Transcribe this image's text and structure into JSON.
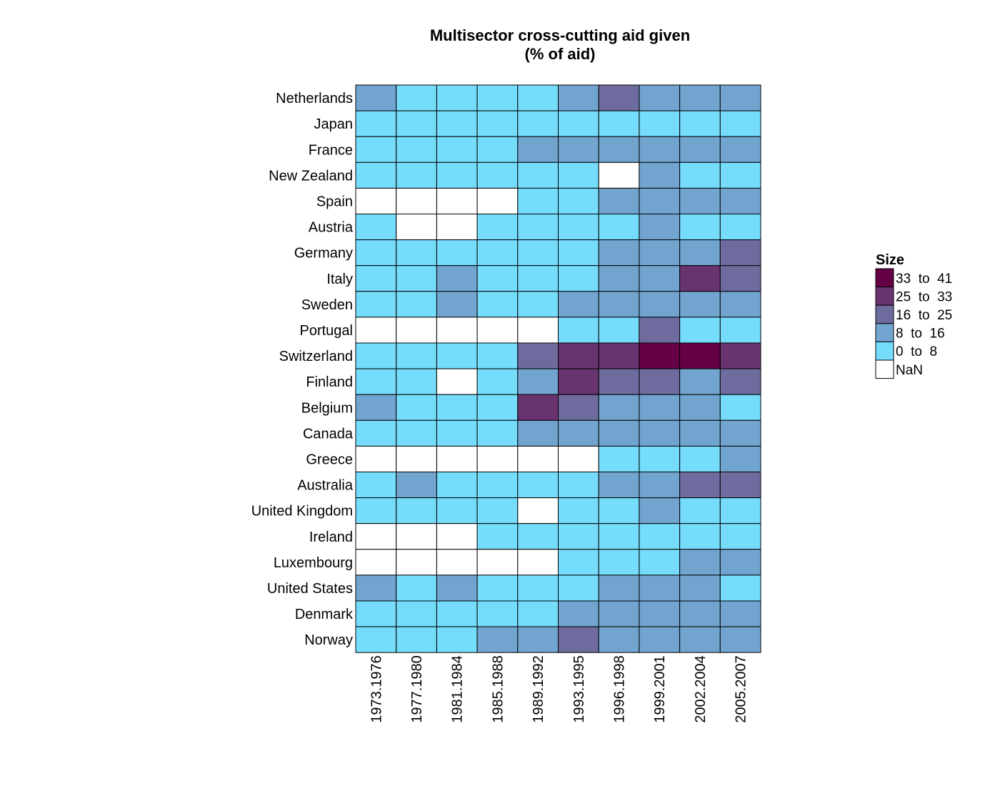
{
  "chart_data": {
    "type": "heatmap",
    "title": "Multisector cross-cutting aid given",
    "subtitle": "(% of aid)",
    "rows": [
      "Netherlands",
      "Japan",
      "France",
      "New Zealand",
      "Spain",
      "Austria",
      "Germany",
      "Italy",
      "Sweden",
      "Portugal",
      "Switzerland",
      "Finland",
      "Belgium",
      "Canada",
      "Greece",
      "Australia",
      "United Kingdom",
      "Ireland",
      "Luxembourg",
      "United States",
      "Denmark",
      "Norway"
    ],
    "columns": [
      "1973.1976",
      "1977.1980",
      "1981.1984",
      "1985.1988",
      "1989.1992",
      "1993.1995",
      "1996.1998",
      "1999.2001",
      "2002.2004",
      "2005.2007"
    ],
    "cell_bins": [
      [
        1,
        0,
        0,
        0,
        0,
        1,
        2,
        1,
        1,
        1
      ],
      [
        0,
        0,
        0,
        0,
        0,
        0,
        0,
        0,
        0,
        0
      ],
      [
        0,
        0,
        0,
        0,
        1,
        1,
        1,
        1,
        1,
        1
      ],
      [
        0,
        0,
        0,
        0,
        0,
        0,
        -1,
        1,
        0,
        0
      ],
      [
        -1,
        -1,
        -1,
        -1,
        0,
        0,
        1,
        1,
        1,
        1
      ],
      [
        0,
        -1,
        -1,
        0,
        0,
        0,
        0,
        1,
        0,
        0
      ],
      [
        0,
        0,
        0,
        0,
        0,
        0,
        1,
        1,
        1,
        2
      ],
      [
        0,
        0,
        1,
        0,
        0,
        0,
        1,
        1,
        3,
        2
      ],
      [
        0,
        0,
        1,
        0,
        0,
        1,
        1,
        1,
        1,
        1
      ],
      [
        -1,
        -1,
        -1,
        -1,
        -1,
        0,
        0,
        2,
        0,
        0
      ],
      [
        0,
        0,
        0,
        0,
        2,
        3,
        3,
        4,
        4,
        3
      ],
      [
        0,
        0,
        -1,
        0,
        1,
        3,
        2,
        2,
        1,
        2
      ],
      [
        1,
        0,
        0,
        0,
        3,
        2,
        1,
        1,
        1,
        0
      ],
      [
        0,
        0,
        0,
        0,
        1,
        1,
        1,
        1,
        1,
        1
      ],
      [
        -1,
        -1,
        -1,
        -1,
        -1,
        -1,
        0,
        0,
        0,
        1
      ],
      [
        0,
        1,
        0,
        0,
        0,
        0,
        1,
        1,
        2,
        2
      ],
      [
        0,
        0,
        0,
        0,
        -1,
        0,
        0,
        1,
        0,
        0
      ],
      [
        -1,
        -1,
        -1,
        0,
        0,
        0,
        0,
        0,
        0,
        0
      ],
      [
        -1,
        -1,
        -1,
        -1,
        -1,
        0,
        0,
        0,
        1,
        1
      ],
      [
        1,
        0,
        1,
        0,
        0,
        0,
        1,
        1,
        1,
        0
      ],
      [
        0,
        0,
        0,
        0,
        0,
        1,
        1,
        1,
        1,
        1
      ],
      [
        0,
        0,
        0,
        1,
        1,
        2,
        1,
        1,
        1,
        1
      ]
    ],
    "legend": {
      "title": "Size",
      "placement": "right",
      "bins": [
        {
          "label": "33  to  41",
          "color": "#660044"
        },
        {
          "label": "25  to  33",
          "color": "#68336e"
        },
        {
          "label": "16  to  25",
          "color": "#6e6c9e"
        },
        {
          "label": "8  to  16",
          "color": "#71a5d0"
        },
        {
          "label": "0  to  8",
          "color": "#75ddfb"
        },
        {
          "label": "NaN",
          "color": "#ffffff"
        }
      ]
    },
    "colors": {
      "nan": "#ffffff",
      "bin0": "#75ddfb",
      "bin1": "#71a5d0",
      "bin2": "#6e6c9e",
      "bin3": "#68336e",
      "bin4": "#660044"
    }
  }
}
